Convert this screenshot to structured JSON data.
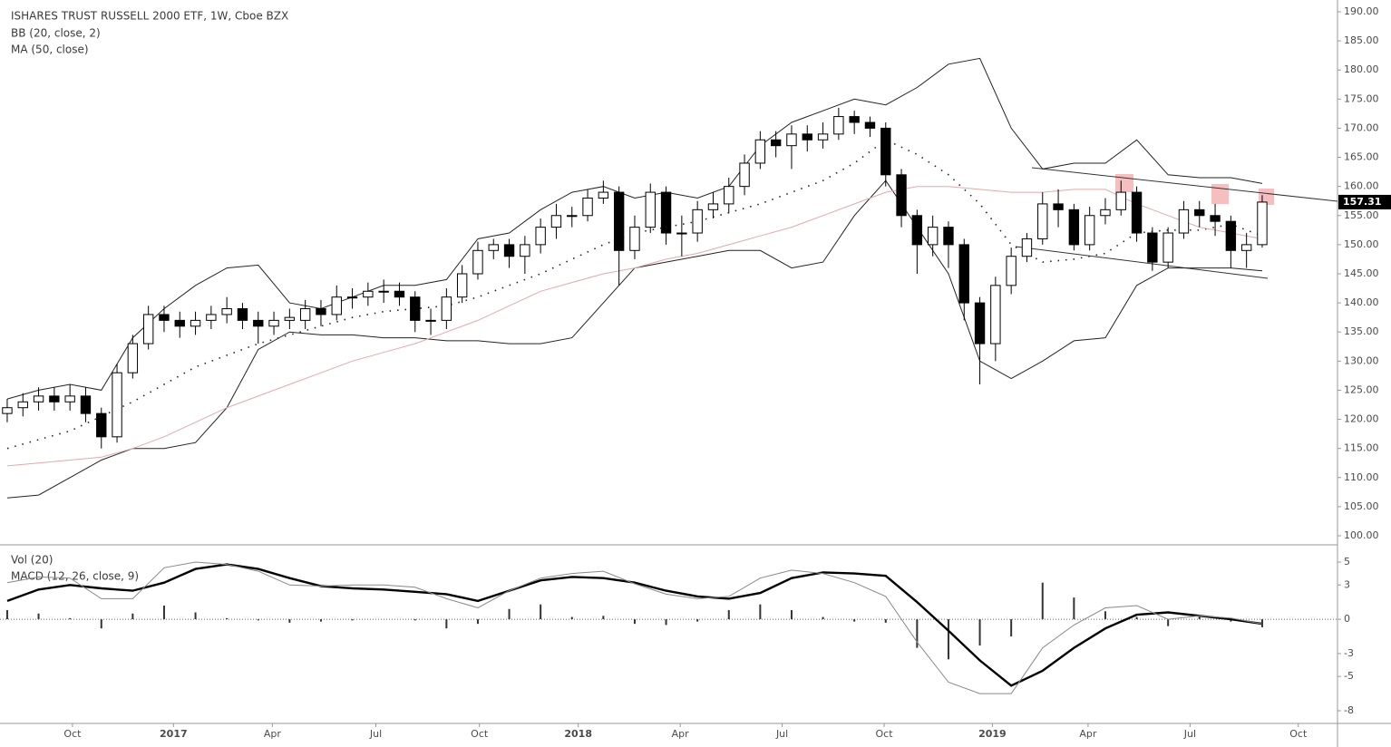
{
  "chart_data": [
    {
      "type": "candlestick",
      "title": "ISHARES TRUST RUSSELL 2000 ETF, 1W, Cboe BZX",
      "bb_label": "BB (20, close, 2)",
      "ma_label": "MA (50, close)",
      "up_color": "#ffffff",
      "down_color": "#000000",
      "edge_color": "#000000",
      "x": [
        0,
        1,
        2,
        3,
        4,
        5,
        6,
        7,
        8,
        9,
        10,
        11,
        12,
        13,
        14,
        15,
        16,
        17,
        18,
        19,
        20,
        21,
        22,
        23,
        24,
        25,
        26,
        27,
        28,
        29,
        30,
        31,
        32,
        33,
        34,
        35,
        36,
        37,
        38,
        39,
        40,
        41,
        42,
        43,
        44,
        45,
        46,
        47,
        48,
        49,
        50,
        51,
        52,
        53,
        54,
        55,
        56,
        57,
        58,
        59,
        60,
        61,
        62,
        63,
        64,
        65,
        66,
        67,
        68,
        69,
        70,
        71,
        72,
        73,
        74,
        75,
        76,
        77,
        78,
        79,
        80
      ],
      "open": [
        121,
        122,
        123,
        124,
        123,
        124,
        121,
        117,
        128,
        133,
        138,
        137,
        136,
        137,
        138,
        139,
        137,
        136,
        137,
        137,
        139,
        138,
        141,
        141,
        142,
        142,
        141,
        137,
        137,
        141,
        145,
        149,
        150,
        148,
        150,
        153,
        155,
        155,
        158,
        159,
        149,
        153,
        159,
        152,
        152,
        156,
        157,
        160,
        164,
        168,
        167,
        169,
        168,
        169,
        172,
        171,
        170,
        162,
        155,
        150,
        153,
        150,
        140,
        133,
        143,
        148,
        151,
        157,
        156,
        150,
        155,
        156,
        159,
        152,
        147,
        152,
        156,
        155,
        154,
        149,
        150
      ],
      "high": [
        123.5,
        124.5,
        125.5,
        125.5,
        126,
        125.5,
        122,
        129.5,
        134.5,
        139.5,
        139.5,
        138.5,
        138.5,
        139.5,
        141,
        140,
        138.5,
        138.5,
        139,
        140.5,
        140.5,
        143,
        142.5,
        143.5,
        144,
        143.5,
        142,
        139,
        142.5,
        146.5,
        150.5,
        151,
        151,
        151.5,
        154.5,
        157,
        156.5,
        159.5,
        161,
        160,
        155,
        160.5,
        160,
        155,
        157.5,
        159,
        161.5,
        165.5,
        169.5,
        169.5,
        170.5,
        170.5,
        171,
        173.5,
        173,
        172,
        171,
        163,
        156,
        155,
        154,
        151,
        141,
        144.5,
        149.5,
        152,
        159,
        159.5,
        157,
        156.5,
        158,
        161,
        160,
        153,
        153,
        157.5,
        157.5,
        157,
        155,
        152,
        158.5
      ],
      "low": [
        119.5,
        120.5,
        121.5,
        121.5,
        121.5,
        119.5,
        115,
        116,
        127,
        132,
        135,
        134,
        134.5,
        135.5,
        136.5,
        135.5,
        133,
        134.5,
        135.5,
        135.5,
        136,
        137,
        139,
        139.5,
        140,
        139.5,
        135,
        134.5,
        135.5,
        140,
        144,
        147.5,
        146,
        145,
        148.5,
        151,
        153,
        154,
        157,
        143,
        147.5,
        152,
        150,
        148,
        150.5,
        154.5,
        155.5,
        158.5,
        163,
        165,
        163,
        166,
        166.5,
        168,
        169,
        168.5,
        160,
        153,
        145,
        148,
        146,
        137,
        126,
        130,
        141.5,
        147,
        150,
        153,
        149,
        149,
        153.5,
        155,
        150.5,
        145.5,
        146,
        151,
        153,
        151.5,
        146,
        146,
        149.5
      ],
      "close": [
        122,
        123,
        124,
        123,
        124,
        121,
        117,
        128,
        133,
        138,
        137,
        136,
        137,
        138,
        139,
        137,
        136,
        137,
        137.5,
        139,
        138,
        141,
        141,
        142,
        142,
        141,
        137,
        137,
        141,
        145,
        149,
        150,
        148,
        150,
        153,
        155,
        155,
        158,
        159,
        149,
        153,
        159,
        152,
        152,
        156,
        157,
        160,
        164,
        168,
        167,
        169,
        168,
        169,
        172,
        171,
        170,
        162,
        155,
        150,
        153,
        150,
        140,
        133,
        143,
        148,
        151,
        157,
        156,
        150,
        155,
        156,
        159,
        152,
        147,
        152,
        156,
        155,
        154,
        149,
        150,
        157.31
      ],
      "line_x": [
        0,
        2,
        4,
        6,
        8,
        10,
        12,
        14,
        16,
        18,
        20,
        22,
        24,
        26,
        28,
        30,
        32,
        34,
        36,
        38,
        40,
        42,
        44,
        46,
        48,
        50,
        52,
        54,
        56,
        58,
        60,
        62,
        64,
        66,
        68,
        70,
        72,
        74,
        76,
        78,
        80
      ],
      "overlays": [
        {
          "color": "#222222",
          "dash": false,
          "values": [
            123.5,
            125,
            126,
            125,
            134,
            139,
            143,
            146,
            146.5,
            140,
            139,
            141,
            143,
            143,
            144,
            151,
            152,
            156,
            159,
            160,
            158,
            159,
            158,
            160,
            167,
            171,
            173,
            175,
            174,
            177,
            181,
            182,
            170,
            163,
            164,
            164,
            168,
            162,
            161.5,
            161.5,
            160.5
          ]
        },
        {
          "color": "#222222",
          "dash": false,
          "values": [
            106.5,
            107,
            110,
            113,
            115,
            115,
            116,
            122,
            132,
            135,
            134.5,
            134.5,
            134,
            134,
            133.5,
            133.5,
            133,
            133,
            134,
            140,
            146,
            147,
            148,
            149,
            149,
            146,
            147,
            155,
            161,
            153,
            145,
            130,
            127,
            130,
            133.5,
            134,
            143,
            146,
            146,
            146,
            145.5
          ]
        },
        {
          "color": "#222222",
          "dash": true,
          "values": [
            115,
            116.5,
            118,
            120.5,
            123,
            126,
            129,
            131,
            133,
            134.5,
            136,
            137.5,
            138.5,
            139,
            139.5,
            141,
            143,
            145,
            147.5,
            150,
            152,
            153,
            154,
            155.5,
            157,
            159,
            161,
            164,
            168,
            165.5,
            162,
            157,
            150,
            147,
            147.5,
            148.5,
            152,
            152.5,
            152.5,
            153.5,
            151.5
          ]
        },
        {
          "color": "#e3a9a9",
          "dash": false,
          "values": [
            112,
            112.5,
            113,
            113.5,
            115,
            117,
            119.5,
            122,
            124,
            126,
            128,
            130,
            131.5,
            133,
            135,
            137,
            139.5,
            142,
            143.5,
            145,
            146,
            147.5,
            148.5,
            150,
            151.5,
            153,
            155,
            157,
            159,
            160,
            160,
            159.5,
            159,
            159,
            159.5,
            159.5,
            157,
            155,
            153,
            152,
            151
          ]
        }
      ],
      "xlim": [
        -0.46,
        84.8
      ],
      "ylim": [
        98.6,
        192.02
      ],
      "yticks": [
        {
          "value": 100,
          "label": "100.00"
        },
        {
          "value": 105,
          "label": "105.00"
        },
        {
          "value": 110,
          "label": "110.00"
        },
        {
          "value": 115,
          "label": "115.00"
        },
        {
          "value": 120,
          "label": "120.00"
        },
        {
          "value": 125,
          "label": "125.00"
        },
        {
          "value": 130,
          "label": "130.00"
        },
        {
          "value": 135,
          "label": "135.00"
        },
        {
          "value": 140,
          "label": "140.00"
        },
        {
          "value": 145,
          "label": "145.00"
        },
        {
          "value": 150,
          "label": "150.00"
        },
        {
          "value": 155,
          "label": "155.00"
        },
        {
          "value": 160,
          "label": "160.00"
        },
        {
          "value": 165,
          "label": "165.00"
        },
        {
          "value": 170,
          "label": "170.00"
        },
        {
          "value": 175,
          "label": "175.00"
        },
        {
          "value": 180,
          "label": "180.00"
        },
        {
          "value": 185,
          "label": "185.00"
        },
        {
          "value": 190,
          "label": "190.00"
        }
      ]
    },
    {
      "type": "line",
      "vol_label": "Vol (20)",
      "title": "MACD (12, 26, close, 9)",
      "x": [
        0,
        2,
        4,
        6,
        8,
        10,
        12,
        14,
        16,
        18,
        20,
        22,
        24,
        26,
        28,
        30,
        32,
        34,
        36,
        38,
        40,
        42,
        44,
        46,
        48,
        50,
        52,
        54,
        56,
        58,
        60,
        62,
        64,
        66,
        68,
        70,
        72,
        74,
        76,
        78,
        80
      ],
      "series": [
        {
          "color": "#000000",
          "width": 2.4,
          "values": [
            1.6,
            2.6,
            3.0,
            2.7,
            2.5,
            3.2,
            4.4,
            4.8,
            4.4,
            3.6,
            2.9,
            2.7,
            2.6,
            2.4,
            2.2,
            1.6,
            2.5,
            3.4,
            3.7,
            3.6,
            3.2,
            2.5,
            2.0,
            1.8,
            2.3,
            3.6,
            4.1,
            4.0,
            3.8,
            1.5,
            -1.0,
            -3.6,
            -5.8,
            -4.5,
            -2.5,
            -0.8,
            0.4,
            0.6,
            0.3,
            0.0,
            -0.4
          ]
        },
        {
          "color": "#888888",
          "width": 1,
          "values": [
            3.2,
            3.7,
            3.6,
            1.8,
            1.8,
            4.5,
            5.0,
            4.8,
            4.2,
            3.0,
            2.9,
            3.0,
            3.0,
            2.8,
            1.8,
            1.0,
            2.5,
            3.6,
            4.0,
            4.2,
            3.1,
            2.2,
            1.8,
            2.0,
            3.6,
            4.3,
            4.0,
            3.2,
            2.0,
            -2.0,
            -5.5,
            -6.5,
            -6.5,
            -2.5,
            -0.5,
            1.0,
            1.2,
            0.0,
            0.3,
            0.1,
            -0.4
          ]
        }
      ],
      "histogram": {
        "color": "#333333",
        "values": [
          0.8,
          0.5,
          0.1,
          -0.8,
          0.5,
          1.2,
          0.6,
          0.1,
          -0.1,
          -0.3,
          -0.2,
          -0.1,
          0,
          -0.1,
          -0.8,
          -0.4,
          0.9,
          1.3,
          0.2,
          0.3,
          -0.4,
          -0.5,
          -0.2,
          0.8,
          1.3,
          0.8,
          0.2,
          -0.2,
          -0.3,
          -2.5,
          -3.5,
          -2.3,
          -1.5,
          3.2,
          1.9,
          0.7,
          0.2,
          -0.6,
          0.2,
          -0.2,
          -0.7
        ]
      },
      "xlim": [
        -0.46,
        84.8
      ],
      "ylim": [
        -9.11,
        6.43
      ],
      "yticks": [
        5,
        3,
        0,
        -3,
        -5,
        -8
      ],
      "xticks": [
        {
          "value": 4.16,
          "label": "Oct"
        },
        {
          "value": 10.6,
          "label": "2017"
        },
        {
          "value": 16.9,
          "label": "Apr"
        },
        {
          "value": 23.5,
          "label": "Jul"
        },
        {
          "value": 30.1,
          "label": "Oct"
        },
        {
          "value": 36.4,
          "label": "2018"
        },
        {
          "value": 42.9,
          "label": "Apr"
        },
        {
          "value": 49.4,
          "label": "Jul"
        },
        {
          "value": 55.9,
          "label": "Oct"
        },
        {
          "value": 62.8,
          "label": "2019"
        },
        {
          "value": 68.9,
          "label": "Apr"
        },
        {
          "value": 75.4,
          "label": "Jul"
        },
        {
          "value": 82.3,
          "label": "Oct"
        }
      ]
    }
  ]
}
